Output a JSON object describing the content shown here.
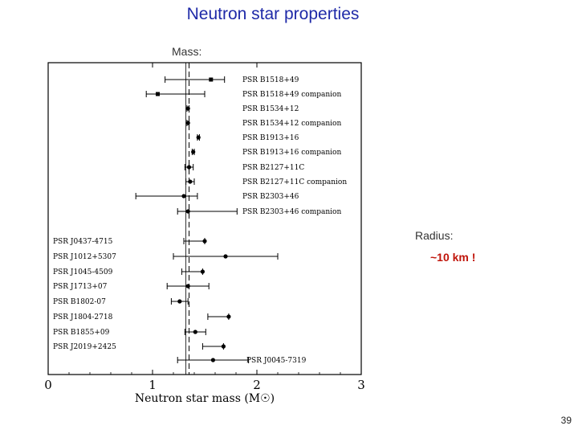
{
  "slide": {
    "title": "Neutron star properties",
    "mass_label": "Mass:",
    "radius_label": "Radius:",
    "radius_value": "~10 km !",
    "page_number": "39"
  },
  "chart_data": {
    "type": "scatter",
    "xlabel": "Neutron star mass (M☉)",
    "xlim": [
      0,
      3
    ],
    "x_ticks": [
      "0",
      "1",
      "2",
      "3"
    ],
    "reference_line_x": 1.35,
    "points": [
      {
        "label": "PSR B1518+49",
        "mass": 1.56,
        "err_lo": 0.44,
        "err_hi": 0.13,
        "marker": "square"
      },
      {
        "label": "PSR B1518+49 companion",
        "mass": 1.05,
        "err_lo": 0.11,
        "err_hi": 0.45,
        "marker": "square"
      },
      {
        "label": "PSR B1534+12",
        "mass": 1.34,
        "err_lo": 0.01,
        "err_hi": 0.01,
        "marker": "circle"
      },
      {
        "label": "PSR B1534+12 companion",
        "mass": 1.34,
        "err_lo": 0.01,
        "err_hi": 0.01,
        "marker": "circle"
      },
      {
        "label": "PSR B1913+16",
        "mass": 1.44,
        "err_lo": 0.01,
        "err_hi": 0.01,
        "marker": "circle"
      },
      {
        "label": "PSR B1913+16 companion",
        "mass": 1.39,
        "err_lo": 0.01,
        "err_hi": 0.01,
        "marker": "circle"
      },
      {
        "label": "PSR B2127+11C",
        "mass": 1.35,
        "err_lo": 0.04,
        "err_hi": 0.04,
        "marker": "circle"
      },
      {
        "label": "PSR B2127+11C companion",
        "mass": 1.36,
        "err_lo": 0.04,
        "err_hi": 0.04,
        "marker": "circle"
      },
      {
        "label": "PSR B2303+46",
        "mass": 1.3,
        "err_lo": 0.46,
        "err_hi": 0.13,
        "marker": "circle"
      },
      {
        "label": "PSR B2303+46 companion",
        "mass": 1.34,
        "err_lo": 0.1,
        "err_hi": 0.47,
        "marker": "circle"
      },
      {
        "label": "PSR J0437-4715",
        "mass": 1.5,
        "err_lo": 0.2,
        "err_hi": 0.0,
        "marker": "circle"
      },
      {
        "label": "PSR J1012+5307",
        "mass": 1.7,
        "err_lo": 0.5,
        "err_hi": 0.5,
        "marker": "circle"
      },
      {
        "label": "PSR J1045-4509",
        "mass": 1.48,
        "err_lo": 0.2,
        "err_hi": 0.0,
        "marker": "circle"
      },
      {
        "label": "PSR J1713+07",
        "mass": 1.34,
        "err_lo": 0.2,
        "err_hi": 0.2,
        "marker": "circle"
      },
      {
        "label": "PSR B1802-07",
        "mass": 1.26,
        "err_lo": 0.08,
        "err_hi": 0.08,
        "marker": "circle"
      },
      {
        "label": "PSR J1804-2718",
        "mass": 1.73,
        "err_lo": 0.2,
        "err_hi": 0.0,
        "marker": "circle"
      },
      {
        "label": "PSR B1855+09",
        "mass": 1.41,
        "err_lo": 0.1,
        "err_hi": 0.1,
        "marker": "circle"
      },
      {
        "label": "PSR J2019+2425",
        "mass": 1.68,
        "err_lo": 0.2,
        "err_hi": 0.0,
        "marker": "circle"
      },
      {
        "label": "PSR J0045-7319",
        "mass": 1.58,
        "err_lo": 0.34,
        "err_hi": 0.34,
        "marker": "circle"
      }
    ]
  }
}
